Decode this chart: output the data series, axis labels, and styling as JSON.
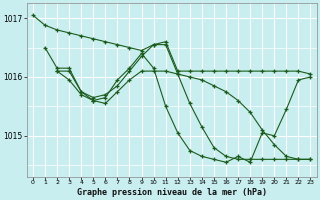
{
  "title": "Graphe pression niveau de la mer (hPa)",
  "bg_color": "#c8eef0",
  "grid_color": "#ffffff",
  "line_color": "#1a5c1a",
  "xlim": [
    -0.5,
    23.5
  ],
  "ylim": [
    1014.3,
    1017.25
  ],
  "yticks": [
    1015,
    1016,
    1017
  ],
  "xticks": [
    0,
    1,
    2,
    3,
    4,
    5,
    6,
    7,
    8,
    9,
    10,
    11,
    12,
    13,
    14,
    15,
    16,
    17,
    18,
    19,
    20,
    21,
    22,
    23
  ],
  "series": [
    {
      "x": [
        0,
        1,
        2,
        3,
        4,
        5,
        6,
        7,
        8,
        9,
        10,
        11,
        12,
        13,
        14,
        15,
        16,
        17,
        18,
        19,
        20,
        21,
        22,
        23
      ],
      "y": [
        1017.05,
        1016.88,
        1016.8,
        1016.75,
        1016.7,
        1016.65,
        1016.6,
        1016.55,
        1016.5,
        1016.45,
        1016.55,
        1016.6,
        1016.1,
        1016.1,
        1016.1,
        1016.1,
        1016.1,
        1016.1,
        1016.1,
        1016.1,
        1016.1,
        1016.1,
        1016.1,
        1016.05
      ]
    },
    {
      "x": [
        1,
        2,
        3,
        4,
        5,
        6,
        7,
        8,
        9,
        10,
        11,
        12,
        13,
        14,
        15,
        16,
        17,
        18,
        19,
        20,
        21,
        22,
        23
      ],
      "y": [
        1016.5,
        1016.15,
        1016.15,
        1015.75,
        1015.65,
        1015.7,
        1015.85,
        1016.1,
        1016.35,
        1016.55,
        1016.55,
        1016.05,
        1015.55,
        1015.15,
        1014.8,
        1014.65,
        1014.6,
        1014.6,
        1014.6,
        1014.6,
        1014.6,
        1014.6,
        1014.6
      ]
    },
    {
      "x": [
        2,
        3,
        4,
        5,
        6,
        7,
        8,
        9,
        10,
        11,
        12,
        13,
        14,
        15,
        16,
        17,
        18,
        19,
        20,
        21,
        22,
        23
      ],
      "y": [
        1016.1,
        1015.95,
        1015.7,
        1015.6,
        1015.65,
        1015.95,
        1016.15,
        1016.4,
        1016.15,
        1015.5,
        1015.05,
        1014.75,
        1014.65,
        1014.6,
        1014.55,
        1014.65,
        1014.55,
        1015.05,
        1015.0,
        1015.45,
        1015.95,
        1016.0
      ]
    },
    {
      "x": [
        2,
        3,
        4,
        5,
        6,
        7,
        8,
        9,
        10,
        11,
        12,
        13,
        14,
        15,
        16,
        17,
        18,
        19,
        20,
        21,
        22,
        23
      ],
      "y": [
        1016.1,
        1016.1,
        1015.75,
        1015.6,
        1015.55,
        1015.75,
        1015.95,
        1016.1,
        1016.1,
        1016.1,
        1016.05,
        1016.0,
        1015.95,
        1015.85,
        1015.75,
        1015.6,
        1015.4,
        1015.1,
        1014.85,
        1014.65,
        1014.6,
        1014.6
      ]
    }
  ]
}
